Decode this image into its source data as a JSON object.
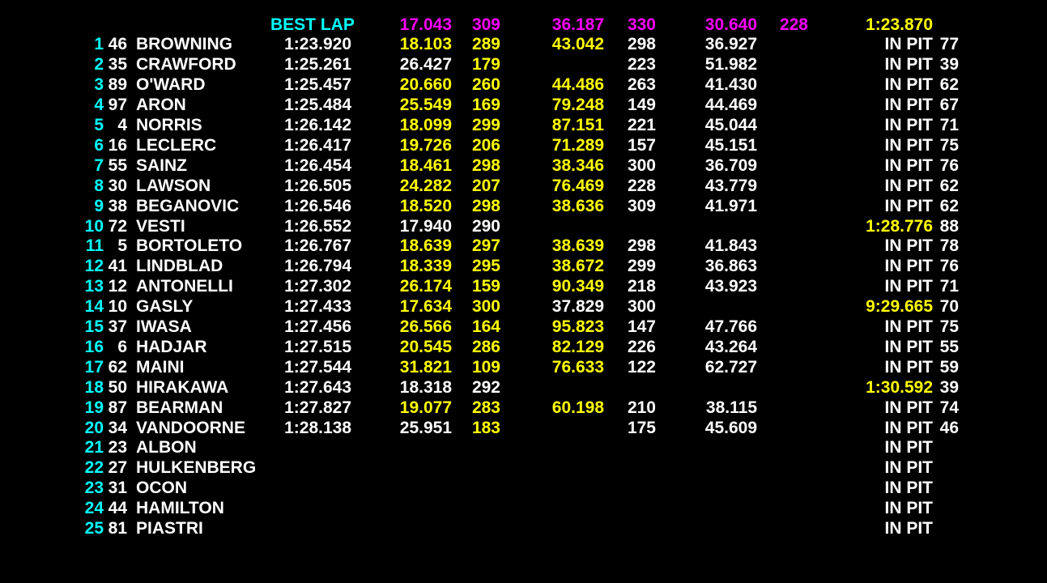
{
  "palette": {
    "cyan": "#00ffff",
    "magenta": "#ff00ff",
    "yellow": "#ffff00",
    "white": "#ffffff",
    "background": "#000000"
  },
  "header": {
    "label": [
      "BEST LAP",
      "cyan"
    ],
    "s1": [
      "17.043",
      "magenta"
    ],
    "sp1": [
      "309",
      "magenta"
    ],
    "s2": [
      "36.187",
      "magenta"
    ],
    "sp2": [
      "330",
      "magenta"
    ],
    "s3": [
      "30.640",
      "magenta"
    ],
    "sp3": [
      "228",
      "magenta"
    ],
    "last": [
      "1:23.870",
      "yellow"
    ]
  },
  "rows": [
    {
      "pos": "1",
      "num": "46",
      "name": "BROWNING",
      "best": "1:23.920",
      "s1": [
        "18.103",
        "yellow"
      ],
      "sp1": [
        "289",
        "yellow"
      ],
      "s2": [
        "43.042",
        "yellow"
      ],
      "sp2": [
        "298",
        "white"
      ],
      "s3": [
        "36.927",
        "white"
      ],
      "sp3": null,
      "last": [
        "IN PIT",
        "white"
      ],
      "laps": "77"
    },
    {
      "pos": "2",
      "num": "35",
      "name": "CRAWFORD",
      "best": "1:25.261",
      "s1": [
        "26.427",
        "white"
      ],
      "sp1": [
        "179",
        "yellow"
      ],
      "s2": null,
      "sp2": [
        "223",
        "white"
      ],
      "s3": [
        "51.982",
        "white"
      ],
      "sp3": null,
      "last": [
        "IN PIT",
        "white"
      ],
      "laps": "39"
    },
    {
      "pos": "3",
      "num": "89",
      "name": "O'WARD",
      "best": "1:25.457",
      "s1": [
        "20.660",
        "yellow"
      ],
      "sp1": [
        "260",
        "yellow"
      ],
      "s2": [
        "44.486",
        "yellow"
      ],
      "sp2": [
        "263",
        "white"
      ],
      "s3": [
        "41.430",
        "white"
      ],
      "sp3": null,
      "last": [
        "IN PIT",
        "white"
      ],
      "laps": "62"
    },
    {
      "pos": "4",
      "num": "97",
      "name": "ARON",
      "best": "1:25.484",
      "s1": [
        "25.549",
        "yellow"
      ],
      "sp1": [
        "169",
        "yellow"
      ],
      "s2": [
        "79.248",
        "yellow"
      ],
      "sp2": [
        "149",
        "white"
      ],
      "s3": [
        "44.469",
        "white"
      ],
      "sp3": null,
      "last": [
        "IN PIT",
        "white"
      ],
      "laps": "67"
    },
    {
      "pos": "5",
      "num": "4",
      "name": "NORRIS",
      "best": "1:26.142",
      "s1": [
        "18.099",
        "yellow"
      ],
      "sp1": [
        "299",
        "yellow"
      ],
      "s2": [
        "87.151",
        "yellow"
      ],
      "sp2": [
        "221",
        "white"
      ],
      "s3": [
        "45.044",
        "white"
      ],
      "sp3": null,
      "last": [
        "IN PIT",
        "white"
      ],
      "laps": "71"
    },
    {
      "pos": "6",
      "num": "16",
      "name": "LECLERC",
      "best": "1:26.417",
      "s1": [
        "19.726",
        "yellow"
      ],
      "sp1": [
        "206",
        "yellow"
      ],
      "s2": [
        "71.289",
        "yellow"
      ],
      "sp2": [
        "157",
        "white"
      ],
      "s3": [
        "45.151",
        "white"
      ],
      "sp3": null,
      "last": [
        "IN PIT",
        "white"
      ],
      "laps": "75"
    },
    {
      "pos": "7",
      "num": "55",
      "name": "SAINZ",
      "best": "1:26.454",
      "s1": [
        "18.461",
        "yellow"
      ],
      "sp1": [
        "298",
        "yellow"
      ],
      "s2": [
        "38.346",
        "yellow"
      ],
      "sp2": [
        "300",
        "white"
      ],
      "s3": [
        "36.709",
        "white"
      ],
      "sp3": null,
      "last": [
        "IN PIT",
        "white"
      ],
      "laps": "76"
    },
    {
      "pos": "8",
      "num": "30",
      "name": "LAWSON",
      "best": "1:26.505",
      "s1": [
        "24.282",
        "yellow"
      ],
      "sp1": [
        "207",
        "yellow"
      ],
      "s2": [
        "76.469",
        "yellow"
      ],
      "sp2": [
        "228",
        "white"
      ],
      "s3": [
        "43.779",
        "white"
      ],
      "sp3": null,
      "last": [
        "IN PIT",
        "white"
      ],
      "laps": "62"
    },
    {
      "pos": "9",
      "num": "38",
      "name": "BEGANOVIC",
      "best": "1:26.546",
      "s1": [
        "18.520",
        "yellow"
      ],
      "sp1": [
        "298",
        "yellow"
      ],
      "s2": [
        "38.636",
        "yellow"
      ],
      "sp2": [
        "309",
        "white"
      ],
      "s3": [
        "41.971",
        "white"
      ],
      "sp3": null,
      "last": [
        "IN PIT",
        "white"
      ],
      "laps": "62"
    },
    {
      "pos": "10",
      "num": "72",
      "name": "VESTI",
      "best": "1:26.552",
      "s1": [
        "17.940",
        "white"
      ],
      "sp1": [
        "290",
        "white"
      ],
      "s2": null,
      "sp2": null,
      "s3": null,
      "sp3": null,
      "last": [
        "1:28.776",
        "yellow"
      ],
      "laps": "88"
    },
    {
      "pos": "11",
      "num": "5",
      "name": "BORTOLETO",
      "best": "1:26.767",
      "s1": [
        "18.639",
        "yellow"
      ],
      "sp1": [
        "297",
        "yellow"
      ],
      "s2": [
        "38.639",
        "yellow"
      ],
      "sp2": [
        "298",
        "white"
      ],
      "s3": [
        "41.843",
        "white"
      ],
      "sp3": null,
      "last": [
        "IN PIT",
        "white"
      ],
      "laps": "78"
    },
    {
      "pos": "12",
      "num": "41",
      "name": "LINDBLAD",
      "best": "1:26.794",
      "s1": [
        "18.339",
        "yellow"
      ],
      "sp1": [
        "295",
        "yellow"
      ],
      "s2": [
        "38.672",
        "yellow"
      ],
      "sp2": [
        "299",
        "white"
      ],
      "s3": [
        "36.863",
        "white"
      ],
      "sp3": null,
      "last": [
        "IN PIT",
        "white"
      ],
      "laps": "76"
    },
    {
      "pos": "13",
      "num": "12",
      "name": "ANTONELLI",
      "best": "1:27.302",
      "s1": [
        "26.174",
        "yellow"
      ],
      "sp1": [
        "159",
        "yellow"
      ],
      "s2": [
        "90.349",
        "yellow"
      ],
      "sp2": [
        "218",
        "white"
      ],
      "s3": [
        "43.923",
        "white"
      ],
      "sp3": null,
      "last": [
        "IN PIT",
        "white"
      ],
      "laps": "71"
    },
    {
      "pos": "14",
      "num": "10",
      "name": "GASLY",
      "best": "1:27.433",
      "s1": [
        "17.634",
        "yellow"
      ],
      "sp1": [
        "300",
        "yellow"
      ],
      "s2": [
        "37.829",
        "white"
      ],
      "sp2": [
        "300",
        "white"
      ],
      "s3": null,
      "sp3": null,
      "last": [
        "9:29.665",
        "yellow"
      ],
      "laps": "70"
    },
    {
      "pos": "15",
      "num": "37",
      "name": "IWASA",
      "best": "1:27.456",
      "s1": [
        "26.566",
        "yellow"
      ],
      "sp1": [
        "164",
        "yellow"
      ],
      "s2": [
        "95.823",
        "yellow"
      ],
      "sp2": [
        "147",
        "white"
      ],
      "s3": [
        "47.766",
        "white"
      ],
      "sp3": null,
      "last": [
        "IN PIT",
        "white"
      ],
      "laps": "75"
    },
    {
      "pos": "16",
      "num": "6",
      "name": "HADJAR",
      "best": "1:27.515",
      "s1": [
        "20.545",
        "yellow"
      ],
      "sp1": [
        "286",
        "yellow"
      ],
      "s2": [
        "82.129",
        "yellow"
      ],
      "sp2": [
        "226",
        "white"
      ],
      "s3": [
        "43.264",
        "white"
      ],
      "sp3": null,
      "last": [
        "IN PIT",
        "white"
      ],
      "laps": "55"
    },
    {
      "pos": "17",
      "num": "62",
      "name": "MAINI",
      "best": "1:27.544",
      "s1": [
        "31.821",
        "yellow"
      ],
      "sp1": [
        "109",
        "yellow"
      ],
      "s2": [
        "76.633",
        "yellow"
      ],
      "sp2": [
        "122",
        "white"
      ],
      "s3": [
        "62.727",
        "white"
      ],
      "sp3": null,
      "last": [
        "IN PIT",
        "white"
      ],
      "laps": "59"
    },
    {
      "pos": "18",
      "num": "50",
      "name": "HIRAKAWA",
      "best": "1:27.643",
      "s1": [
        "18.318",
        "white"
      ],
      "sp1": [
        "292",
        "white"
      ],
      "s2": null,
      "sp2": null,
      "s3": null,
      "sp3": null,
      "last": [
        "1:30.592",
        "yellow"
      ],
      "laps": "39"
    },
    {
      "pos": "19",
      "num": "87",
      "name": "BEARMAN",
      "best": "1:27.827",
      "s1": [
        "19.077",
        "yellow"
      ],
      "sp1": [
        "283",
        "yellow"
      ],
      "s2": [
        "60.198",
        "yellow"
      ],
      "sp2": [
        "210",
        "white"
      ],
      "s3": [
        "38.115",
        "white"
      ],
      "sp3": null,
      "last": [
        "IN PIT",
        "white"
      ],
      "laps": "74"
    },
    {
      "pos": "20",
      "num": "34",
      "name": "VANDOORNE",
      "best": "1:28.138",
      "s1": [
        "25.951",
        "white"
      ],
      "sp1": [
        "183",
        "yellow"
      ],
      "s2": null,
      "sp2": [
        "175",
        "white"
      ],
      "s3": [
        "45.609",
        "white"
      ],
      "sp3": null,
      "last": [
        "IN PIT",
        "white"
      ],
      "laps": "46"
    },
    {
      "pos": "21",
      "num": "23",
      "name": "ALBON",
      "best": null,
      "s1": null,
      "sp1": null,
      "s2": null,
      "sp2": null,
      "s3": null,
      "sp3": null,
      "last": [
        "IN PIT",
        "white"
      ],
      "laps": null
    },
    {
      "pos": "22",
      "num": "27",
      "name": "HULKENBERG",
      "best": null,
      "s1": null,
      "sp1": null,
      "s2": null,
      "sp2": null,
      "s3": null,
      "sp3": null,
      "last": [
        "IN PIT",
        "white"
      ],
      "laps": null
    },
    {
      "pos": "23",
      "num": "31",
      "name": "OCON",
      "best": null,
      "s1": null,
      "sp1": null,
      "s2": null,
      "sp2": null,
      "s3": null,
      "sp3": null,
      "last": [
        "IN PIT",
        "white"
      ],
      "laps": null
    },
    {
      "pos": "24",
      "num": "44",
      "name": "HAMILTON",
      "best": null,
      "s1": null,
      "sp1": null,
      "s2": null,
      "sp2": null,
      "s3": null,
      "sp3": null,
      "last": [
        "IN PIT",
        "white"
      ],
      "laps": null
    },
    {
      "pos": "25",
      "num": "81",
      "name": "PIASTRI",
      "best": null,
      "s1": null,
      "sp1": null,
      "s2": null,
      "sp2": null,
      "s3": null,
      "sp3": null,
      "last": [
        "IN PIT",
        "white"
      ],
      "laps": null
    }
  ]
}
